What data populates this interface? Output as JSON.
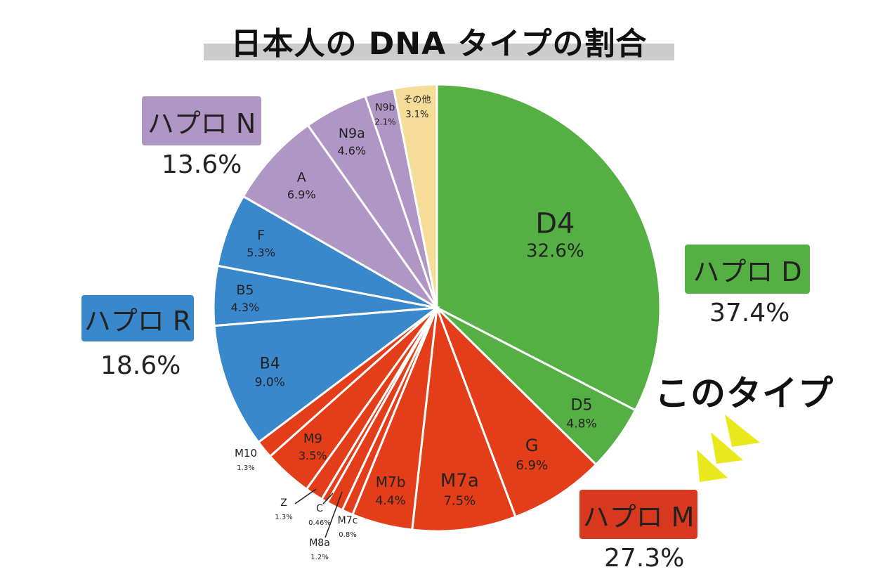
{
  "title": "日本人の DNA タイプの割合",
  "callout_text": "このタイプ",
  "groups": [
    {
      "key": "N",
      "label": "ハプロ N",
      "percent": "13.6%",
      "color": "#b096c4"
    },
    {
      "key": "R",
      "label": "ハプロ R",
      "percent": "18.6%",
      "color": "#3a88cc"
    },
    {
      "key": "D",
      "label": "ハプロ D",
      "percent": "37.4%",
      "color": "#55b043"
    },
    {
      "key": "M",
      "label": "ハプロ M",
      "percent": "27.3%",
      "color": "#d8381d"
    }
  ],
  "chart_data": {
    "type": "pie",
    "title": "日本人の DNA タイプの割合",
    "slices": [
      {
        "name": "D4",
        "value": 32.6,
        "label": "32.6%",
        "group": "D"
      },
      {
        "name": "D5",
        "value": 4.8,
        "label": "4.8%",
        "group": "D"
      },
      {
        "name": "G",
        "value": 6.9,
        "label": "6.9%",
        "group": "M"
      },
      {
        "name": "M7a",
        "value": 7.5,
        "label": "7.5%",
        "group": "M"
      },
      {
        "name": "M7b",
        "value": 4.4,
        "label": "4.4%",
        "group": "M"
      },
      {
        "name": "M7c",
        "value": 0.8,
        "label": "0.8%",
        "group": "M"
      },
      {
        "name": "M8a",
        "value": 1.2,
        "label": "1.2%",
        "group": "M"
      },
      {
        "name": "C",
        "value": 0.46,
        "label": "0.46%",
        "group": "M"
      },
      {
        "name": "Z",
        "value": 1.3,
        "label": "1.3%",
        "group": "M"
      },
      {
        "name": "M9",
        "value": 3.5,
        "label": "3.5%",
        "group": "M"
      },
      {
        "name": "M10",
        "value": 1.3,
        "label": "1.3%",
        "group": "M"
      },
      {
        "name": "B4",
        "value": 9.0,
        "label": "9.0%",
        "group": "R"
      },
      {
        "name": "B5",
        "value": 4.3,
        "label": "4.3%",
        "group": "R"
      },
      {
        "name": "F",
        "value": 5.3,
        "label": "5.3%",
        "group": "R"
      },
      {
        "name": "A",
        "value": 6.9,
        "label": "6.9%",
        "group": "N"
      },
      {
        "name": "N9a",
        "value": 4.6,
        "label": "4.6%",
        "group": "N"
      },
      {
        "name": "N9b",
        "value": 2.1,
        "label": "2.1%",
        "group": "N"
      },
      {
        "name": "その他",
        "value": 3.1,
        "label": "3.1%",
        "group": "other"
      }
    ],
    "group_colors": {
      "D": "#55b043",
      "M": "#e43d19",
      "R": "#3a88cc",
      "N": "#b096c4",
      "other": "#f5dc98"
    },
    "highlight_color": "#e8e81c"
  }
}
